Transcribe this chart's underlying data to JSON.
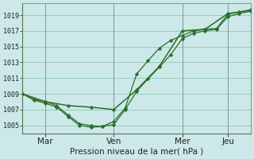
{
  "background_color": "#cce8e8",
  "grid_color": "#99ccbb",
  "line_color": "#2a6e2a",
  "xlabel": "Pression niveau de la mer( hPa )",
  "ylim": [
    1004.0,
    1020.5
  ],
  "yticks": [
    1005,
    1007,
    1009,
    1011,
    1013,
    1015,
    1017,
    1019
  ],
  "xtick_labels": [
    "Mar",
    "Ven",
    "Mer",
    "Jeu"
  ],
  "xtick_positions": [
    12,
    48,
    84,
    108
  ],
  "xlim": [
    0,
    120
  ],
  "line1_x": [
    0,
    6,
    12,
    18,
    24,
    30,
    36,
    42,
    48,
    54,
    60,
    66,
    72,
    78,
    84,
    90,
    96,
    102,
    108,
    114,
    120
  ],
  "line1_y": [
    1009.0,
    1008.3,
    1008.0,
    1007.5,
    1006.3,
    1005.2,
    1004.95,
    1004.85,
    1005.1,
    1007.0,
    1009.3,
    1010.9,
    1012.4,
    1014.0,
    1016.0,
    1016.7,
    1017.0,
    1017.2,
    1018.8,
    1019.2,
    1019.5
  ],
  "line2_x": [
    0,
    6,
    12,
    18,
    24,
    30,
    36,
    42,
    48,
    54,
    60,
    66,
    72,
    78,
    84,
    90,
    96,
    102,
    108,
    114,
    120
  ],
  "line2_y": [
    1009.0,
    1008.2,
    1007.8,
    1007.3,
    1006.1,
    1005.0,
    1004.75,
    1004.85,
    1005.5,
    1007.2,
    1011.5,
    1013.2,
    1014.8,
    1015.8,
    1016.4,
    1017.0,
    1017.2,
    1017.3,
    1019.1,
    1019.4,
    1019.7
  ],
  "line3_x": [
    0,
    12,
    24,
    36,
    48,
    60,
    72,
    84,
    96,
    108,
    120
  ],
  "line3_y": [
    1009.0,
    1008.0,
    1007.5,
    1007.3,
    1007.0,
    1009.5,
    1012.5,
    1017.0,
    1017.2,
    1019.2,
    1019.6
  ],
  "vline_positions": [
    12,
    48,
    84,
    108
  ],
  "vline_color": "#7799aa"
}
